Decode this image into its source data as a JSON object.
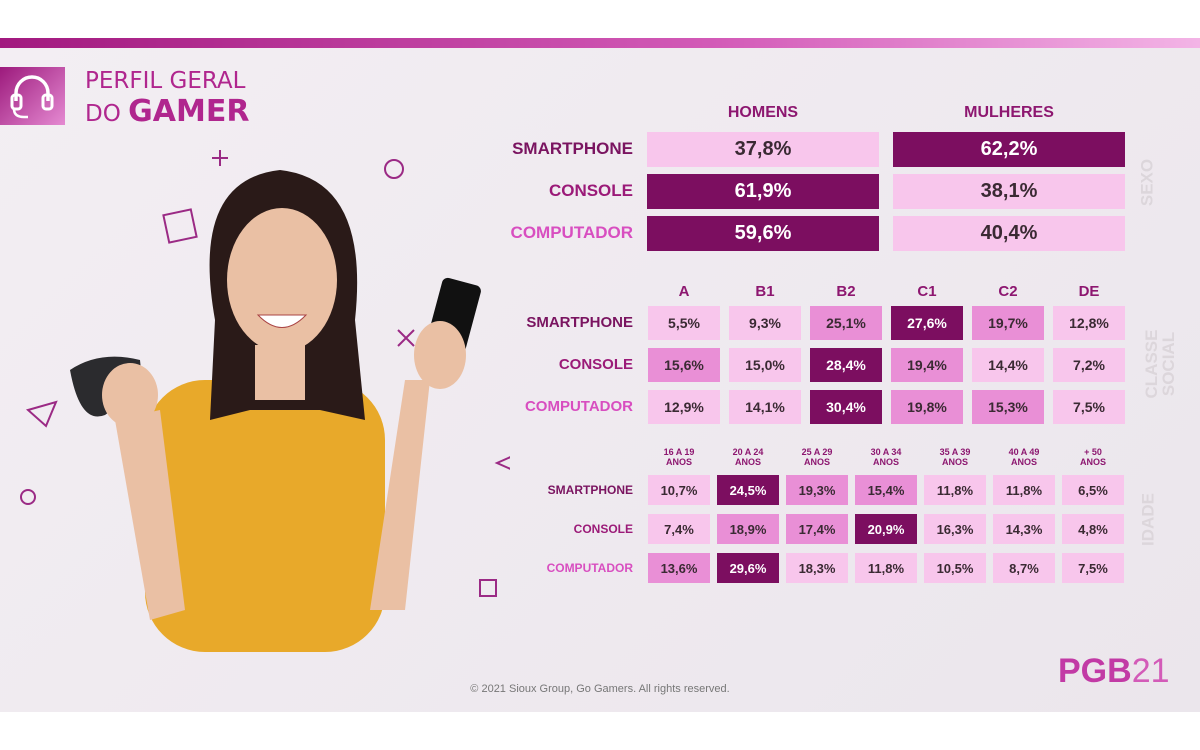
{
  "header": {
    "title_line1": "PERFIL GERAL",
    "title_line2_prefix": "DO",
    "title_line2_bold": "GAMER",
    "icon": "headset-icon"
  },
  "colors": {
    "light": "#f8c6ec",
    "medium": "#e98fd6",
    "dark": "#7c0e60",
    "label_smartphone": "#7a1460",
    "label_console": "#9b1a78",
    "label_computador": "#d84ec0"
  },
  "footer": {
    "copyright": "© 2021 Sioux Group, Go Gamers. All rights reserved.",
    "logo_text": "PGB",
    "logo_year": "21"
  },
  "chart_data": [
    {
      "type": "heatmap",
      "side_label": "SEXO",
      "columns": [
        "HOMENS",
        "MULHERES"
      ],
      "rows": [
        "SMARTPHONE",
        "CONSOLE",
        "COMPUTADOR"
      ],
      "values": [
        [
          "37,8%",
          "62,2%"
        ],
        [
          "61,9%",
          "38,1%"
        ],
        [
          "59,6%",
          "40,4%"
        ]
      ],
      "levels": [
        [
          0,
          2
        ],
        [
          2,
          0
        ],
        [
          2,
          0
        ]
      ]
    },
    {
      "type": "heatmap",
      "side_label": "CLASSE\nSOCIAL",
      "columns": [
        "A",
        "B1",
        "B2",
        "C1",
        "C2",
        "DE"
      ],
      "rows": [
        "SMARTPHONE",
        "CONSOLE",
        "COMPUTADOR"
      ],
      "values": [
        [
          "5,5%",
          "9,3%",
          "25,1%",
          "27,6%",
          "19,7%",
          "12,8%"
        ],
        [
          "15,6%",
          "15,0%",
          "28,4%",
          "19,4%",
          "14,4%",
          "7,2%"
        ],
        [
          "12,9%",
          "14,1%",
          "30,4%",
          "19,8%",
          "15,3%",
          "7,5%"
        ]
      ],
      "levels": [
        [
          0,
          0,
          1,
          2,
          1,
          0
        ],
        [
          1,
          0,
          2,
          1,
          0,
          0
        ],
        [
          0,
          0,
          2,
          1,
          1,
          0
        ]
      ]
    },
    {
      "type": "heatmap",
      "side_label": "IDADE",
      "columns": [
        "16 A 19\nANOS",
        "20 A 24\nANOS",
        "25 A 29\nANOS",
        "30 A 34\nANOS",
        "35 A 39\nANOS",
        "40 A 49\nANOS",
        "+ 50\nANOS"
      ],
      "rows": [
        "SMARTPHONE",
        "CONSOLE",
        "COMPUTADOR"
      ],
      "values": [
        [
          "10,7%",
          "24,5%",
          "19,3%",
          "15,4%",
          "11,8%",
          "11,8%",
          "6,5%"
        ],
        [
          "7,4%",
          "18,9%",
          "17,4%",
          "20,9%",
          "16,3%",
          "14,3%",
          "4,8%"
        ],
        [
          "13,6%",
          "29,6%",
          "18,3%",
          "11,8%",
          "10,5%",
          "8,7%",
          "7,5%"
        ]
      ],
      "levels": [
        [
          0,
          2,
          1,
          1,
          0,
          0,
          0
        ],
        [
          0,
          1,
          1,
          2,
          0,
          0,
          0
        ],
        [
          1,
          2,
          0,
          0,
          0,
          0,
          0
        ]
      ]
    }
  ]
}
